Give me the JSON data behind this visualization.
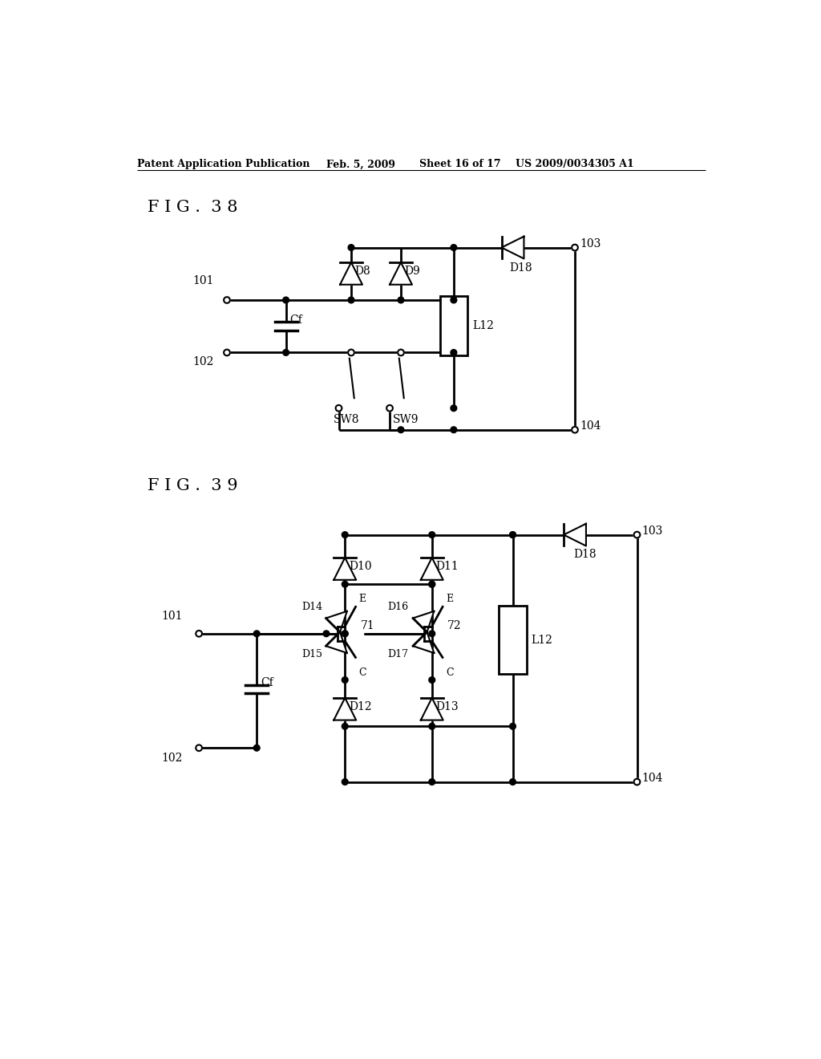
{
  "background_color": "#ffffff",
  "header_text": "Patent Application Publication",
  "header_date": "Feb. 5, 2009",
  "header_sheet": "Sheet 16 of 17",
  "header_patent": "US 2009/0034305 A1",
  "fig38_label": "F I G .  3 8",
  "fig39_label": "F I G .  3 9"
}
